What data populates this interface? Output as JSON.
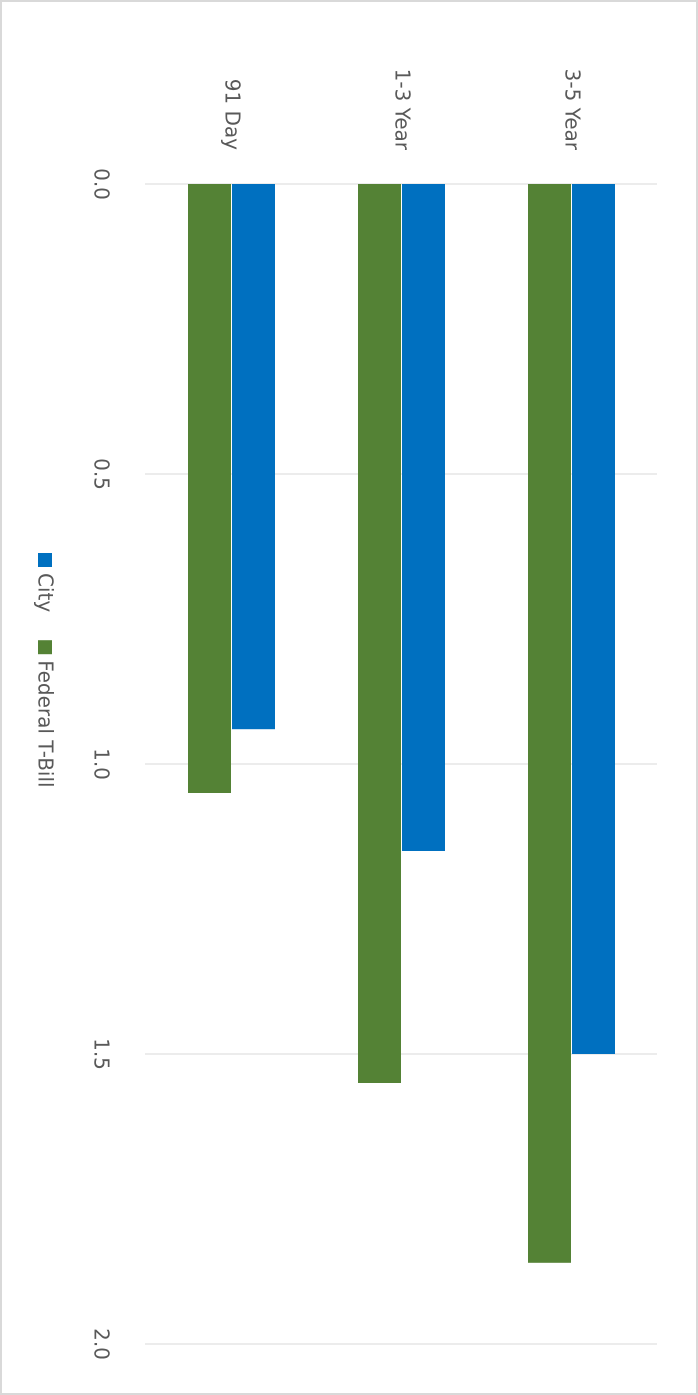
{
  "chart_data": {
    "type": "bar",
    "categories": [
      "91 Day",
      "1-3 Year",
      "3-5 Year"
    ],
    "series": [
      {
        "name": "City",
        "color": "#0070c0",
        "values": [
          0.94,
          1.15,
          1.5
        ]
      },
      {
        "name": "Federal T-Bill",
        "color": "#548235",
        "values": [
          1.05,
          1.55,
          1.86
        ]
      }
    ],
    "ylim": [
      0,
      2
    ],
    "yticks": [
      {
        "value": 0,
        "label": "0.0"
      },
      {
        "value": 0.5,
        "label": "0.5"
      },
      {
        "value": 1,
        "label": "1.0"
      },
      {
        "value": 1.5,
        "label": "1.5"
      },
      {
        "value": 2,
        "label": "2.0"
      }
    ],
    "grid": true
  }
}
